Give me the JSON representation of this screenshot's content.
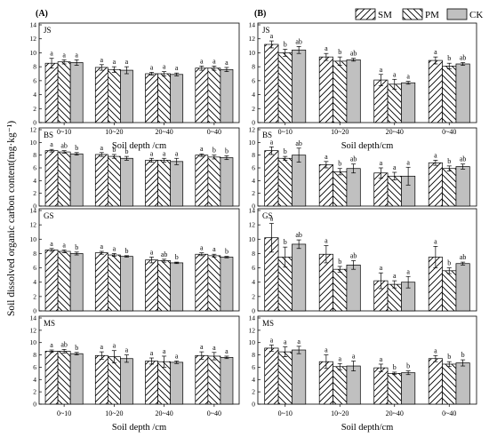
{
  "figure": {
    "ylabel": "Soil dissolved organic carbon content(mg·kg⁻¹)",
    "legend": [
      {
        "key": "SM",
        "pattern": "hatch-right"
      },
      {
        "key": "PM",
        "pattern": "hatch-left"
      },
      {
        "key": "CK",
        "pattern": "gray"
      }
    ]
  },
  "chart_data": [
    {
      "type": "bar",
      "panel": "A",
      "title": "(A)",
      "site": "JS",
      "xlabel": "Soil depth /cm",
      "categories": [
        "0~10",
        "10~20",
        "20~40",
        "0~40"
      ],
      "ylim": [
        0,
        14
      ],
      "yticks": [
        0,
        2,
        4,
        6,
        8,
        10,
        12,
        14
      ],
      "series": [
        {
          "name": "SM",
          "values": [
            8.5,
            7.9,
            7.0,
            7.8
          ],
          "errors": [
            0.7,
            0.4,
            0.2,
            0.3
          ]
        },
        {
          "name": "PM",
          "values": [
            8.7,
            7.6,
            7.0,
            7.8
          ],
          "errors": [
            0.3,
            0.4,
            0.3,
            0.3
          ]
        },
        {
          "name": "CK",
          "values": [
            8.6,
            7.5,
            6.9,
            7.6
          ],
          "errors": [
            0.4,
            0.5,
            0.2,
            0.3
          ]
        }
      ],
      "labels": [
        [
          "a",
          "a",
          "a"
        ],
        [
          "a",
          "a",
          "a"
        ],
        [
          "a",
          "a",
          "a"
        ],
        [
          "a",
          "a",
          "a"
        ]
      ]
    },
    {
      "type": "bar",
      "panel": "B",
      "title": "(B)",
      "site": "JS",
      "xlabel": "Soil depth/cm",
      "categories": [
        "0~10",
        "10~20",
        "20~40",
        "0~40"
      ],
      "ylim": [
        0,
        14
      ],
      "yticks": [
        0,
        2,
        4,
        6,
        8,
        10,
        12,
        14
      ],
      "series": [
        {
          "name": "SM",
          "values": [
            11.2,
            9.4,
            6.1,
            8.9
          ],
          "errors": [
            0.5,
            0.5,
            0.8,
            0.5
          ]
        },
        {
          "name": "PM",
          "values": [
            10.0,
            8.8,
            5.5,
            8.1
          ],
          "errors": [
            0.5,
            0.6,
            0.7,
            0.4
          ]
        },
        {
          "name": "CK",
          "values": [
            10.4,
            9.0,
            5.7,
            8.4
          ],
          "errors": [
            0.5,
            0.2,
            0.2,
            0.2
          ]
        }
      ],
      "labels": [
        [
          "a",
          "b",
          "ab"
        ],
        [
          "a",
          "b",
          "ab"
        ],
        [
          "a",
          "a",
          "a"
        ],
        [
          "a",
          "b",
          "ab"
        ]
      ]
    },
    {
      "type": "bar",
      "panel": "A",
      "site": "BS",
      "categories": [
        "0~10",
        "10~20",
        "20~40",
        "0~40"
      ],
      "ylim": [
        0,
        12
      ],
      "yticks": [
        0,
        2,
        4,
        6,
        8,
        10,
        12
      ],
      "series": [
        {
          "name": "SM",
          "values": [
            8.7,
            8.1,
            7.2,
            8.0
          ],
          "errors": [
            0.2,
            0.3,
            0.3,
            0.2
          ]
        },
        {
          "name": "PM",
          "values": [
            8.5,
            7.8,
            7.2,
            7.7
          ],
          "errors": [
            0.2,
            0.3,
            0.3,
            0.3
          ]
        },
        {
          "name": "CK",
          "values": [
            8.2,
            7.5,
            7.0,
            7.6
          ],
          "errors": [
            0.2,
            0.3,
            0.5,
            0.3
          ]
        }
      ],
      "labels": [
        [
          "a",
          "ab",
          "b"
        ],
        [
          "a",
          "b",
          "b"
        ],
        [
          "a",
          "a",
          "a"
        ],
        [
          "a",
          "b",
          "b"
        ]
      ]
    },
    {
      "type": "bar",
      "panel": "B",
      "site": "BS",
      "categories": [
        "0~10",
        "10~20",
        "20~40",
        "0~40"
      ],
      "ylim": [
        0,
        12
      ],
      "yticks": [
        0,
        2,
        4,
        6,
        8,
        10,
        12
      ],
      "series": [
        {
          "name": "SM",
          "values": [
            8.7,
            6.5,
            5.2,
            6.8
          ],
          "errors": [
            0.6,
            0.5,
            0.8,
            0.4
          ]
        },
        {
          "name": "PM",
          "values": [
            7.5,
            5.4,
            4.7,
            5.9
          ],
          "errors": [
            0.3,
            0.5,
            0.6,
            0.4
          ]
        },
        {
          "name": "CK",
          "values": [
            8.0,
            5.9,
            4.7,
            6.2
          ],
          "errors": [
            1.1,
            0.7,
            1.4,
            0.4
          ]
        }
      ],
      "labels": [
        [
          "a",
          "b",
          "ab"
        ],
        [
          "a",
          "b",
          "ab"
        ],
        [
          "a",
          "a",
          "a"
        ],
        [
          "a",
          "b",
          "ab"
        ]
      ]
    },
    {
      "type": "bar",
      "panel": "A",
      "site": "GS",
      "categories": [
        "0~10",
        "10~20",
        "20~40",
        "0~40"
      ],
      "ylim": [
        0,
        14
      ],
      "yticks": [
        0,
        2,
        4,
        6,
        8,
        10,
        12,
        14
      ],
      "series": [
        {
          "name": "SM",
          "values": [
            8.5,
            8.1,
            7.1,
            7.9
          ],
          "errors": [
            0.2,
            0.2,
            0.4,
            0.2
          ]
        },
        {
          "name": "PM",
          "values": [
            8.3,
            7.8,
            7.0,
            7.7
          ],
          "errors": [
            0.2,
            0.2,
            0.2,
            0.2
          ]
        },
        {
          "name": "CK",
          "values": [
            8.0,
            7.6,
            6.7,
            7.5
          ],
          "errors": [
            0.2,
            0.1,
            0.1,
            0.1
          ]
        }
      ],
      "labels": [
        [
          "a",
          "a",
          "b"
        ],
        [
          "a",
          "a",
          "b"
        ],
        [
          "a",
          "ab",
          "b"
        ],
        [
          "a",
          "a",
          "b"
        ]
      ]
    },
    {
      "type": "bar",
      "panel": "B",
      "site": "GS",
      "categories": [
        "0~10",
        "10~20",
        "20~40",
        "0~40"
      ],
      "ylim": [
        0,
        14
      ],
      "yticks": [
        0,
        2,
        4,
        6,
        8,
        10,
        12,
        14
      ],
      "series": [
        {
          "name": "SM",
          "values": [
            10.2,
            7.9,
            4.2,
            7.5
          ],
          "errors": [
            2.0,
            1.2,
            1.1,
            1.5
          ]
        },
        {
          "name": "PM",
          "values": [
            7.5,
            5.8,
            3.7,
            5.6
          ],
          "errors": [
            1.4,
            0.4,
            0.5,
            0.4
          ]
        },
        {
          "name": "CK",
          "values": [
            9.3,
            6.4,
            4.0,
            6.6
          ],
          "errors": [
            0.6,
            0.6,
            0.8,
            0.2
          ]
        }
      ],
      "labels": [
        [
          "a",
          "b",
          "ab"
        ],
        [
          "a",
          "b",
          "ab"
        ],
        [
          "a",
          "a",
          "a"
        ],
        [
          "a",
          "b",
          "ab"
        ]
      ]
    },
    {
      "type": "bar",
      "panel": "A",
      "site": "MS",
      "xlabel": "Soil depth /cm",
      "categories": [
        "0~10",
        "10~20",
        "20~40",
        "0~40"
      ],
      "ylim": [
        0,
        14
      ],
      "yticks": [
        0,
        2,
        4,
        6,
        8,
        10,
        12,
        14
      ],
      "series": [
        {
          "name": "SM",
          "values": [
            8.6,
            7.9,
            7.0,
            7.9
          ],
          "errors": [
            0.2,
            0.6,
            0.5,
            0.6
          ]
        },
        {
          "name": "PM",
          "values": [
            8.6,
            7.7,
            6.9,
            7.8
          ],
          "errors": [
            0.3,
            1.0,
            0.9,
            0.6
          ]
        },
        {
          "name": "CK",
          "values": [
            8.2,
            7.4,
            6.8,
            7.6
          ],
          "errors": [
            0.2,
            0.6,
            0.2,
            0.2
          ]
        }
      ],
      "labels": [
        [
          "a",
          "ab",
          "b"
        ],
        [
          "a",
          "a",
          "a"
        ],
        [
          "a",
          "a",
          "a"
        ],
        [
          "a",
          "a",
          "a"
        ]
      ]
    },
    {
      "type": "bar",
      "panel": "B",
      "site": "MS",
      "xlabel": "Soil depth/cm",
      "categories": [
        "0~10",
        "10~20",
        "20~40",
        "0~40"
      ],
      "ylim": [
        0,
        14
      ],
      "yticks": [
        0,
        2,
        4,
        6,
        8,
        10,
        12,
        14
      ],
      "series": [
        {
          "name": "SM",
          "values": [
            9.1,
            6.9,
            5.9,
            7.4
          ],
          "errors": [
            0.5,
            1.1,
            0.6,
            0.5
          ]
        },
        {
          "name": "PM",
          "values": [
            8.5,
            6.1,
            5.0,
            6.5
          ],
          "errors": [
            0.8,
            0.5,
            0.2,
            0.4
          ]
        },
        {
          "name": "CK",
          "values": [
            8.8,
            6.2,
            5.1,
            6.7
          ],
          "errors": [
            0.6,
            0.8,
            0.3,
            0.5
          ]
        }
      ],
      "labels": [
        [
          "a",
          "a",
          "a"
        ],
        [
          "a",
          "a",
          "a"
        ],
        [
          "a",
          "b",
          "b"
        ],
        [
          "a",
          "b",
          "b"
        ]
      ]
    }
  ]
}
